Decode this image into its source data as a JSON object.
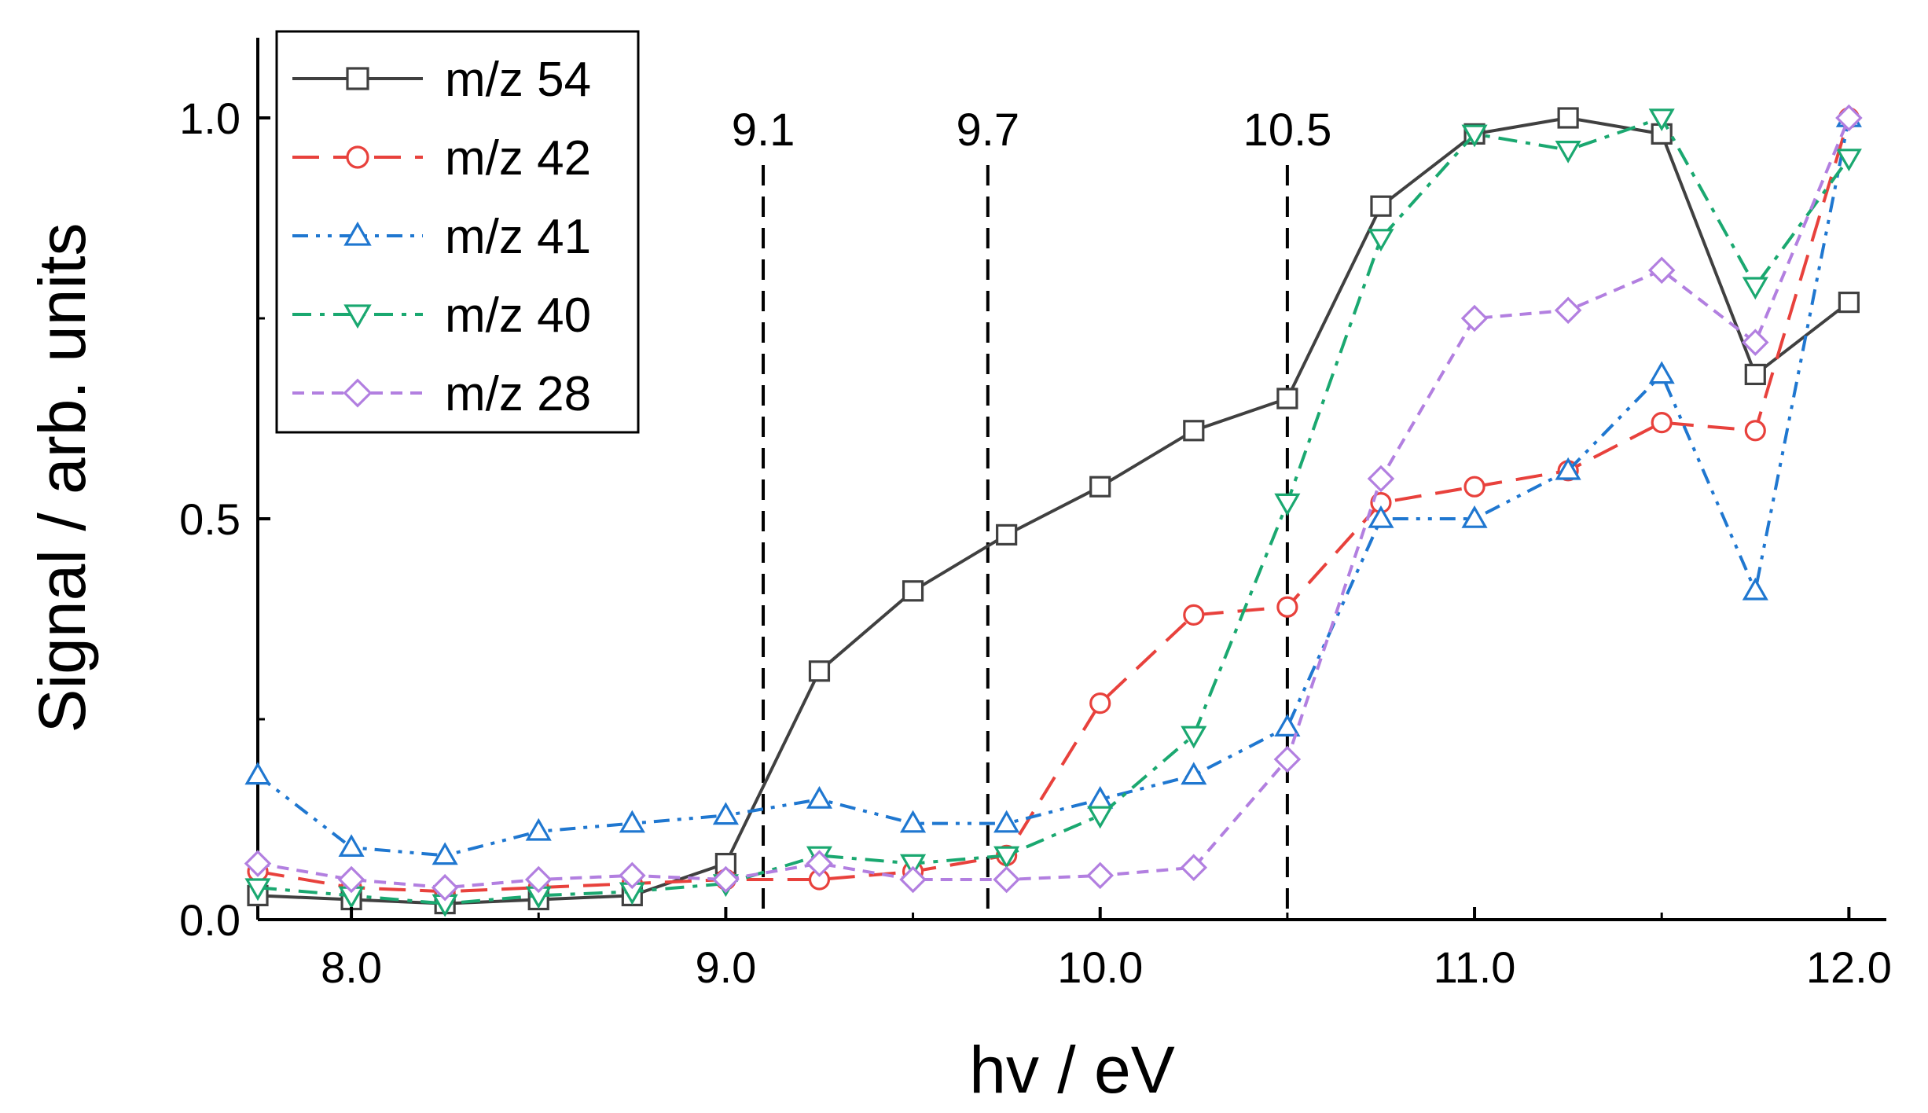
{
  "chart_data": {
    "type": "line",
    "xlabel": "hv / eV",
    "ylabel": "Signal / arb. units",
    "xlim": [
      7.75,
      12.1
    ],
    "ylim": [
      0.0,
      1.1
    ],
    "xticks": [
      8.0,
      9.0,
      10.0,
      11.0,
      12.0
    ],
    "xtick_labels": [
      "8.0",
      "9.0",
      "10.0",
      "11.0",
      "12.0"
    ],
    "yticks": [
      0.0,
      0.5,
      1.0
    ],
    "ytick_labels": [
      "0.0",
      "0.5",
      "1.0"
    ],
    "grid": false,
    "legend_position": "top-left",
    "x": [
      7.75,
      8.0,
      8.25,
      8.5,
      8.75,
      9.0,
      9.25,
      9.5,
      9.75,
      10.0,
      10.25,
      10.5,
      10.75,
      11.0,
      11.25,
      11.5,
      11.75,
      12.0
    ],
    "series": [
      {
        "name": "m/z 54",
        "color": "#404040",
        "marker": "square",
        "dash": "solid",
        "values": [
          0.03,
          0.025,
          0.02,
          0.025,
          0.03,
          0.07,
          0.31,
          0.41,
          0.48,
          0.54,
          0.61,
          0.65,
          0.89,
          0.98,
          1.0,
          0.98,
          0.68,
          0.77
        ]
      },
      {
        "name": "m/z 42",
        "color": "#e8413c",
        "marker": "circle",
        "dash": "dash",
        "values": [
          0.06,
          0.04,
          0.035,
          0.04,
          0.045,
          0.05,
          0.05,
          0.06,
          0.08,
          0.27,
          0.38,
          0.39,
          0.52,
          0.54,
          0.56,
          0.62,
          0.61,
          1.0
        ]
      },
      {
        "name": "m/z 41",
        "color": "#1f77d0",
        "marker": "triangle-up",
        "dash": "dashdotdot",
        "values": [
          0.18,
          0.09,
          0.08,
          0.11,
          0.12,
          0.13,
          0.15,
          0.12,
          0.12,
          0.15,
          0.18,
          0.24,
          0.5,
          0.5,
          0.56,
          0.68,
          0.41,
          1.0
        ]
      },
      {
        "name": "m/z 40",
        "color": "#1aa870",
        "marker": "triangle-down",
        "dash": "dashdot",
        "values": [
          0.04,
          0.03,
          0.02,
          0.03,
          0.035,
          0.045,
          0.08,
          0.07,
          0.08,
          0.13,
          0.23,
          0.52,
          0.85,
          0.98,
          0.96,
          1.0,
          0.79,
          0.95
        ]
      },
      {
        "name": "m/z 28",
        "color": "#b27fe0",
        "marker": "diamond",
        "dash": "shortdash",
        "values": [
          0.07,
          0.05,
          0.04,
          0.05,
          0.055,
          0.05,
          0.07,
          0.05,
          0.05,
          0.055,
          0.065,
          0.2,
          0.55,
          0.75,
          0.76,
          0.81,
          0.72,
          1.0
        ]
      }
    ],
    "vlines": [
      {
        "x": 9.1,
        "label": "9.1"
      },
      {
        "x": 9.7,
        "label": "9.7"
      },
      {
        "x": 10.5,
        "label": "10.5"
      }
    ]
  }
}
